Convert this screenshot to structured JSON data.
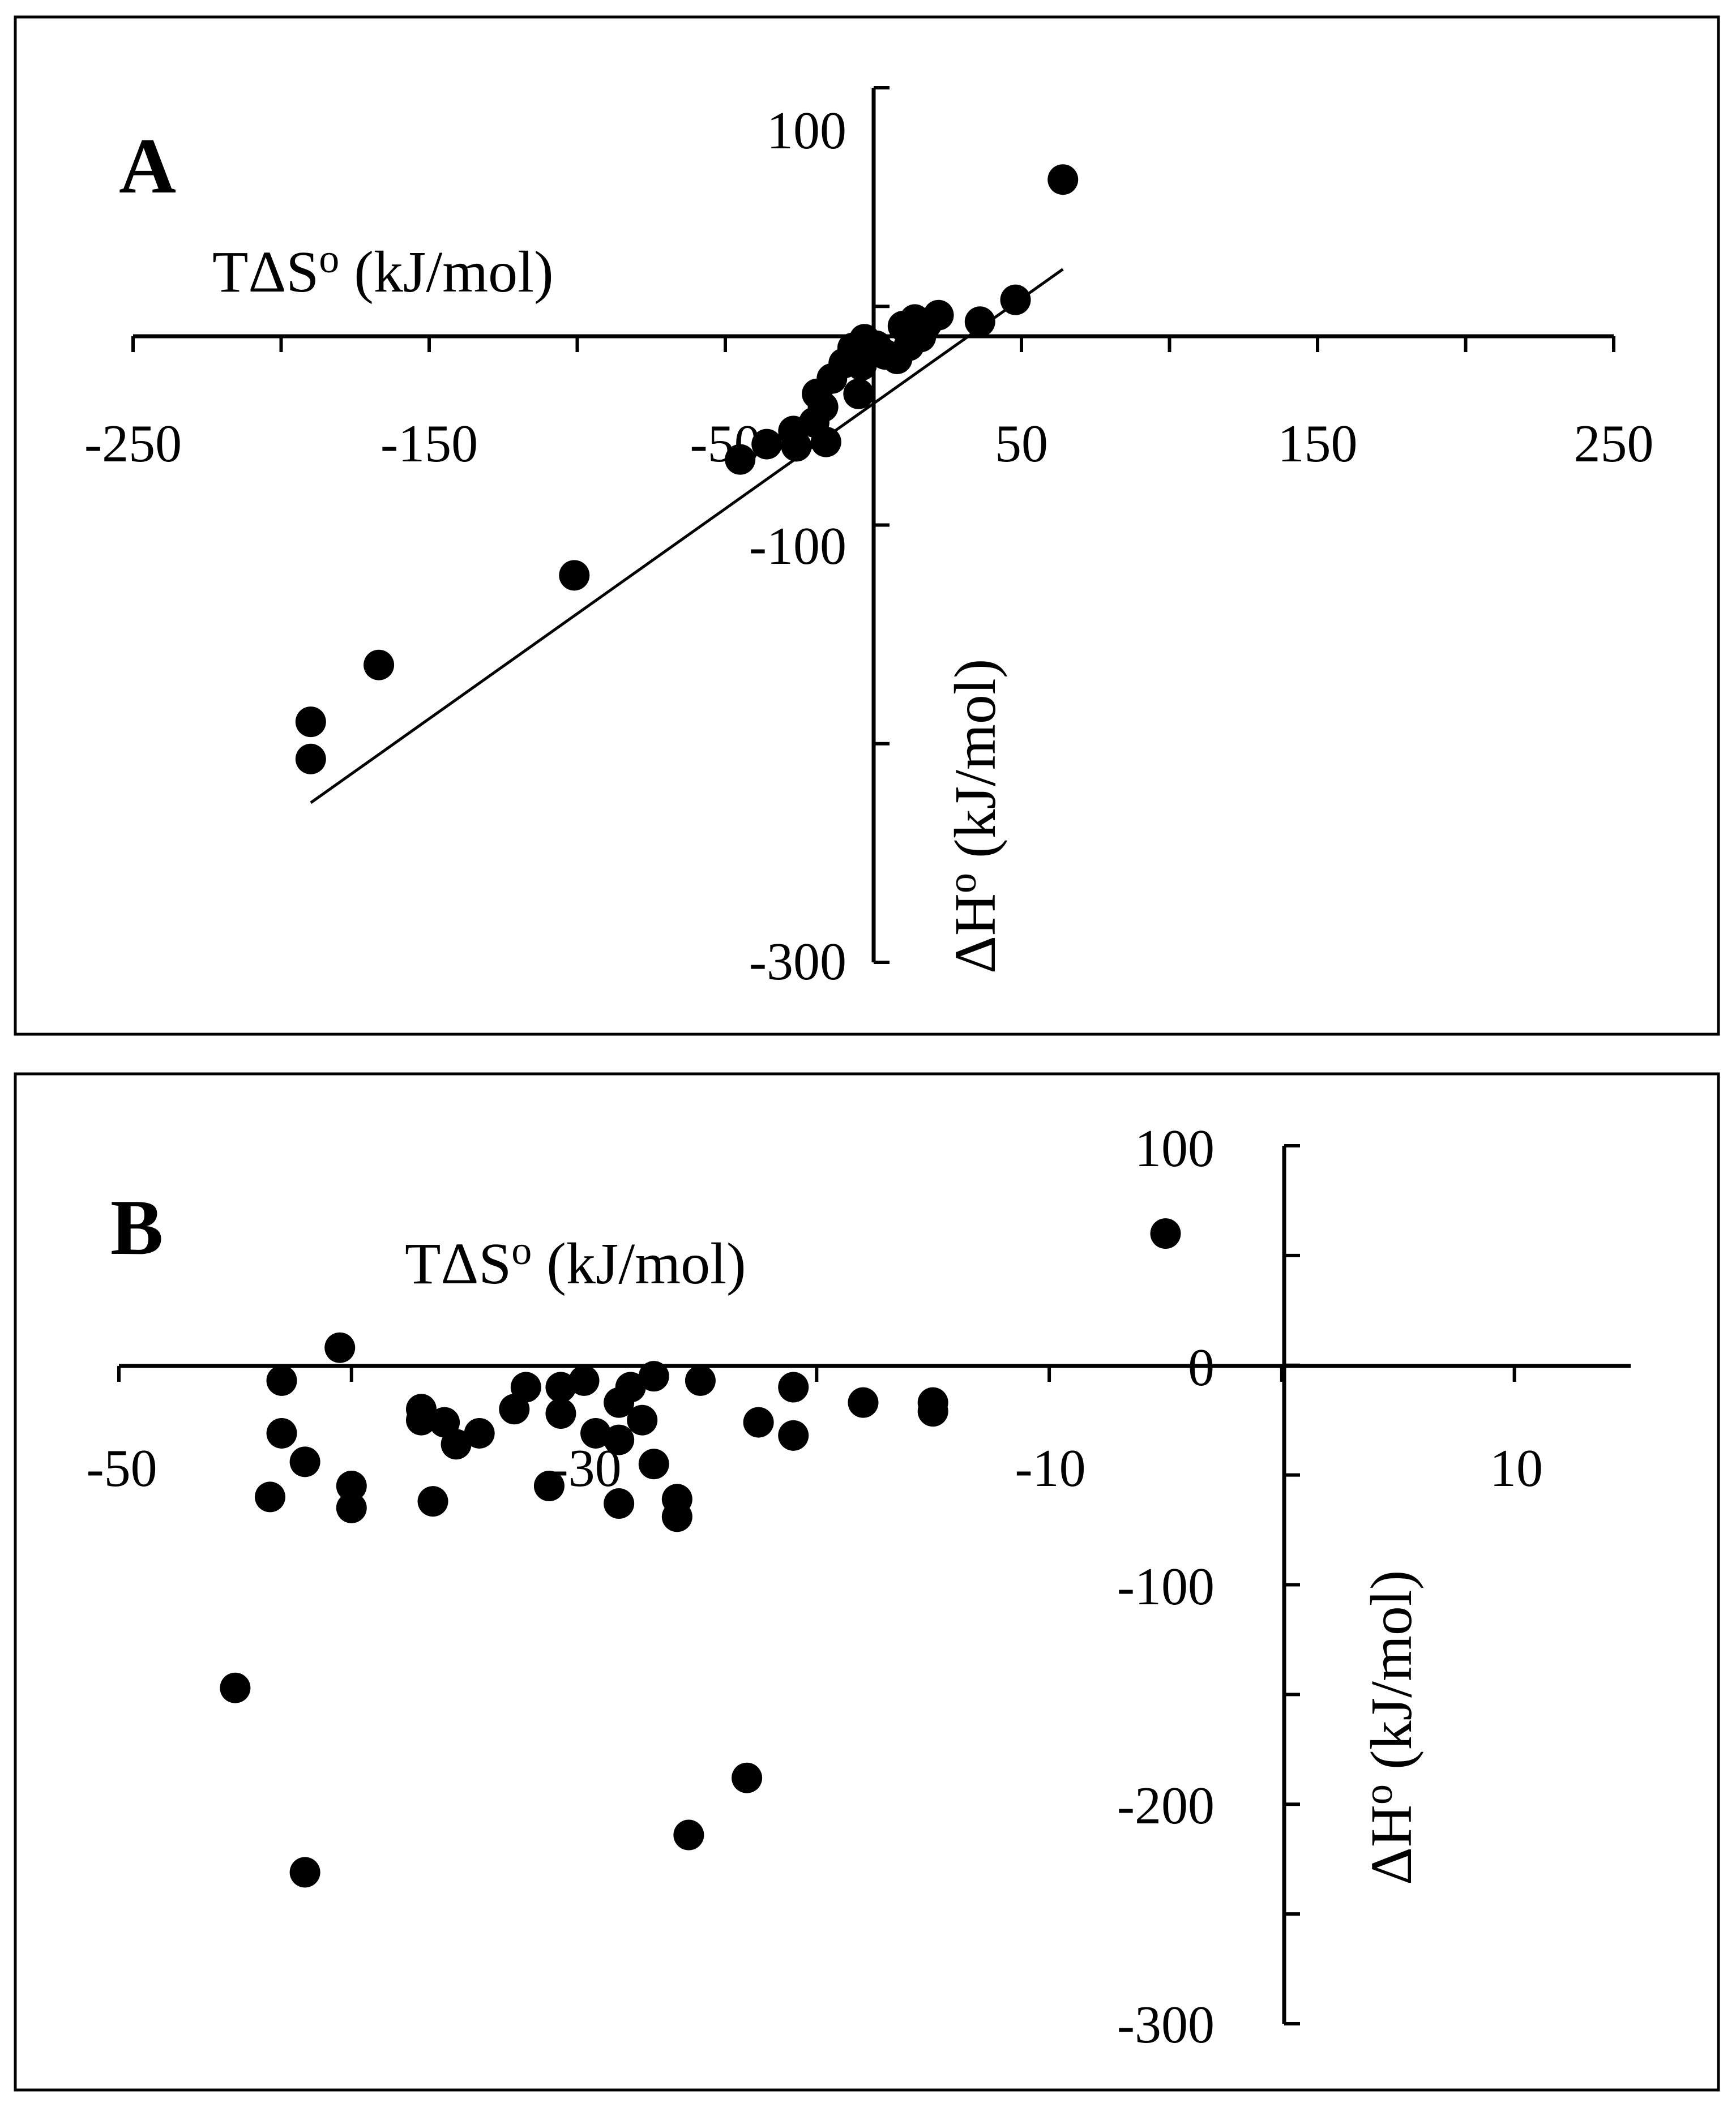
{
  "chart_data": [
    {
      "type": "scatter",
      "panel": "A",
      "xlabel": "TΔS",
      "xlabel_sup": "o",
      "xlabel_unit": " (kJ/mol)",
      "ylabel": "ΔH",
      "ylabel_sup": "o",
      "ylabel_unit": " (kJ/mol)",
      "xlim": [
        -250,
        250
      ],
      "ylim": [
        -300,
        100
      ],
      "x_ticks": [
        -250,
        -200,
        -150,
        -100,
        -50,
        0,
        50,
        100,
        150,
        200,
        250
      ],
      "x_tick_labels": [
        "-250",
        "-150",
        "-50",
        "50",
        "150",
        "250"
      ],
      "y_ticks": [
        -300,
        -200,
        -100,
        0,
        100
      ],
      "y_tick_labels": [
        "100",
        "-100",
        "-300"
      ],
      "trendline": {
        "x1": -190,
        "y1": -227,
        "x2": 64,
        "y2": 17
      },
      "points": [
        {
          "x": 64,
          "y": 58
        },
        {
          "x": 48,
          "y": 3
        },
        {
          "x": 36,
          "y": -7
        },
        {
          "x": 22,
          "y": -4
        },
        {
          "x": 18,
          "y": -8
        },
        {
          "x": 14,
          "y": -6
        },
        {
          "x": 10,
          "y": -9
        },
        {
          "x": 16,
          "y": -14
        },
        {
          "x": 12,
          "y": -18
        },
        {
          "x": 8,
          "y": -24
        },
        {
          "x": 4,
          "y": -22
        },
        {
          "x": 1,
          "y": -18
        },
        {
          "x": -3,
          "y": -15
        },
        {
          "x": -7,
          "y": -19
        },
        {
          "x": -4,
          "y": -27
        },
        {
          "x": -10,
          "y": -26
        },
        {
          "x": -14,
          "y": -33
        },
        {
          "x": -5,
          "y": -40
        },
        {
          "x": -19,
          "y": -40
        },
        {
          "x": -17,
          "y": -46
        },
        {
          "x": -20,
          "y": -53
        },
        {
          "x": -27,
          "y": -57
        },
        {
          "x": -16,
          "y": -62
        },
        {
          "x": -26,
          "y": -64
        },
        {
          "x": -36,
          "y": -63
        },
        {
          "x": -45,
          "y": -70
        },
        {
          "x": -101,
          "y": -123
        },
        {
          "x": -167,
          "y": -164
        },
        {
          "x": -190,
          "y": -190
        },
        {
          "x": -190,
          "y": -207
        }
      ]
    },
    {
      "type": "scatter",
      "panel": "B",
      "xlabel": "TΔS",
      "xlabel_sup": "o",
      "xlabel_unit": " (kJ/mol)",
      "ylabel": "ΔH",
      "ylabel_sup": "o",
      "ylabel_unit": " (kJ/mol)",
      "xlim": [
        -50,
        15
      ],
      "ylim": [
        -300,
        100
      ],
      "x_ticks": [
        -50,
        -40,
        -30,
        -20,
        -10,
        0,
        10
      ],
      "x_tick_labels": [
        "-50",
        "-30",
        "-10",
        "10"
      ],
      "y_ticks": [
        -300,
        -250,
        -200,
        -150,
        -100,
        -50,
        0,
        50,
        100
      ],
      "y_tick_labels": [
        "100",
        "0",
        "-100",
        "-200",
        "-300"
      ],
      "points": [
        {
          "x": -5,
          "y": 60
        },
        {
          "x": -40.5,
          "y": 8
        },
        {
          "x": -43,
          "y": -7
        },
        {
          "x": -27,
          "y": -5
        },
        {
          "x": -25,
          "y": -7
        },
        {
          "x": -30,
          "y": -7
        },
        {
          "x": -31,
          "y": -10
        },
        {
          "x": -32.5,
          "y": -10
        },
        {
          "x": -28,
          "y": -10
        },
        {
          "x": -21,
          "y": -10
        },
        {
          "x": -28.5,
          "y": -17
        },
        {
          "x": -37,
          "y": -20
        },
        {
          "x": -33,
          "y": -20
        },
        {
          "x": -31,
          "y": -22
        },
        {
          "x": -18,
          "y": -17
        },
        {
          "x": -15,
          "y": -17
        },
        {
          "x": -37,
          "y": -25
        },
        {
          "x": -36,
          "y": -26
        },
        {
          "x": -27.5,
          "y": -25
        },
        {
          "x": -22.5,
          "y": -26
        },
        {
          "x": -34.5,
          "y": -31
        },
        {
          "x": -29.5,
          "y": -31
        },
        {
          "x": -43,
          "y": -31
        },
        {
          "x": -35.5,
          "y": -36
        },
        {
          "x": -28.5,
          "y": -34
        },
        {
          "x": -21,
          "y": -32
        },
        {
          "x": -15,
          "y": -21
        },
        {
          "x": -42,
          "y": -44
        },
        {
          "x": -27,
          "y": -45
        },
        {
          "x": -40,
          "y": -55
        },
        {
          "x": -31.5,
          "y": -55
        },
        {
          "x": -43.5,
          "y": -60
        },
        {
          "x": -26,
          "y": -61
        },
        {
          "x": -36.5,
          "y": -62
        },
        {
          "x": -28.5,
          "y": -63
        },
        {
          "x": -40,
          "y": -65
        },
        {
          "x": -26,
          "y": -69
        },
        {
          "x": -45,
          "y": -147
        },
        {
          "x": -23,
          "y": -188
        },
        {
          "x": -25.5,
          "y": -214
        },
        {
          "x": -42,
          "y": -231
        }
      ]
    }
  ],
  "panels": {
    "a": {
      "letter": "A",
      "x_title": "TΔS",
      "x_title_sup": "o",
      "x_title_unit": " (kJ/mol)",
      "y_title": "ΔH",
      "y_title_sup": "o",
      "y_title_unit": " (kJ/mol)",
      "x_ticks": [
        "-250",
        "-150",
        "-50",
        "50",
        "150",
        "250"
      ],
      "y_ticks": [
        "100",
        "-100",
        "-300"
      ]
    },
    "b": {
      "letter": "B",
      "x_title": "TΔS",
      "x_title_sup": "o",
      "x_title_unit": " (kJ/mol)",
      "y_title": "ΔH",
      "y_title_sup": "o",
      "y_title_unit": " (kJ/mol)",
      "x_ticks": [
        "-50",
        "-30",
        "-10",
        "10"
      ],
      "y_ticks": [
        "100",
        "0",
        "-100",
        "-200",
        "-300"
      ]
    }
  }
}
